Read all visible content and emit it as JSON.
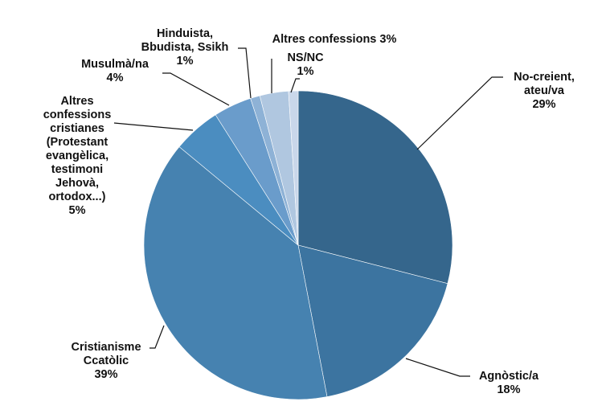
{
  "chart_data": {
    "type": "pie",
    "title": "",
    "start_angle_deg": 0,
    "direction": "clockwise",
    "labels": [
      "No-creient, ateu/va",
      "Agnòstic/a",
      "Cristianisme Ccatòlic",
      "Altres confessions cristianes (Protestant evangèlica, testimoni Jehovà, ortodox...)",
      "Musulmà/na",
      "Hinduista, Bbudista, Ssikh",
      "Altres confessions",
      "NS/NC"
    ],
    "values": [
      29,
      18,
      39,
      5,
      4,
      1,
      3,
      1
    ],
    "unit": "%",
    "colors": [
      "#35668c",
      "#3c74a0",
      "#4682b0",
      "#4b8dc0",
      "#6a9ccb",
      "#8eb2d6",
      "#b0c7e0",
      "#c9d7ea"
    ]
  },
  "labels": {
    "no_creient": "No-creient,\nateu/va\n29%",
    "agnostic": "Agnòstic/a\n18%",
    "catolic": "Cristianisme\nCcatòlic\n39%",
    "altres_cristianes": "Altres\nconfessions\ncristianes\n(Protestant\nevangèlica,\ntestimoni\nJehovà,\nortodox...)\n5%",
    "musulma": "Musulmà/na\n4%",
    "hinduista": "Hinduista,\nBbudista, Ssikh\n1%",
    "altres": "Altres confessions 3%",
    "nsnc": "NS/NC\n1%"
  }
}
